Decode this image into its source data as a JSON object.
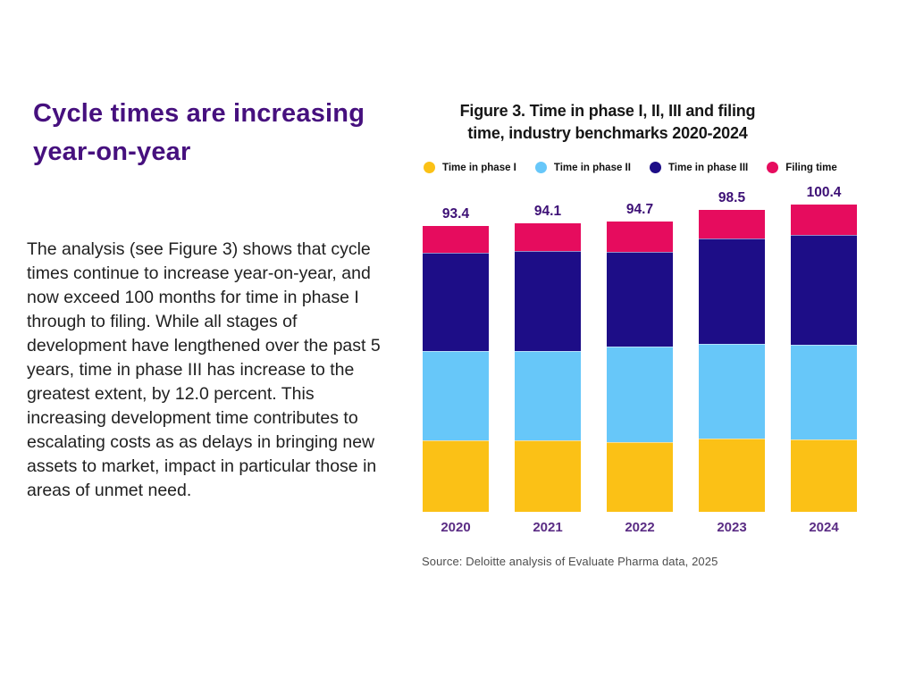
{
  "left_column": {
    "heading_line1": "Cycle times are increasing",
    "heading_line2": "year-on-year",
    "body_text": "The analysis (see Figure 3) shows that cycle times continue to increase year-on-year, and now exceed 100 months for time in phase I through to filing. While all stages of development have lengthened over the past 5 years, time in phase III has increase to the greatest extent, by 12.0 percent. This increasing development time contributes to escalating costs as as delays in bringing new assets to market, impact in particular those in areas of unmet need."
  },
  "figure": {
    "title_line1": "Figure 3. Time in phase I, II, III and filing",
    "title_line2": "time, industry benchmarks 2020-2024",
    "source": "Source: Deloitte analysis of Evaluate Pharma data, 2025"
  },
  "colors": {
    "phase1": "#FBC116",
    "phase2": "#67C7F9",
    "phase3": "#1D0D87",
    "filing": "#E60C5E",
    "heading_purple": "#46107E",
    "value_label_purple": "#3D1076",
    "year_label_purple": "#5A2C84"
  },
  "chart_data": {
    "type": "bar",
    "stacked": true,
    "title": "Figure 3. Time in phase I, II, III and filing time, industry benchmarks 2020-2024",
    "unit": "months",
    "categories": [
      "2020",
      "2021",
      "2022",
      "2023",
      "2024"
    ],
    "totals": [
      93.4,
      94.1,
      94.7,
      98.5,
      100.4
    ],
    "total_labels": [
      "93.4",
      "94.1",
      "94.7",
      "98.5",
      "100.4"
    ],
    "series": [
      {
        "name": "Time in phase I",
        "color_key": "phase1",
        "values": [
          23.2,
          23.4,
          22.9,
          23.9,
          23.7
        ]
      },
      {
        "name": "Time in phase II",
        "color_key": "phase2",
        "values": [
          29.4,
          29.0,
          31.1,
          31.0,
          30.9
        ]
      },
      {
        "name": "Time in phase III",
        "color_key": "phase3",
        "values": [
          32.0,
          32.7,
          31.0,
          34.2,
          35.8
        ]
      },
      {
        "name": "Filing time",
        "color_key": "filing",
        "values": [
          8.8,
          9.0,
          9.7,
          9.4,
          10.0
        ]
      }
    ],
    "legend": [
      "Time in phase I",
      "Time in phase II",
      "Time in phase III",
      "Filing time"
    ],
    "legend_position": "top",
    "ylim": [
      0,
      105
    ],
    "grid": false,
    "value_labels_shown": "stack totals above each bar",
    "source": "Source: Deloitte analysis of Evaluate Pharma data, 2025"
  }
}
